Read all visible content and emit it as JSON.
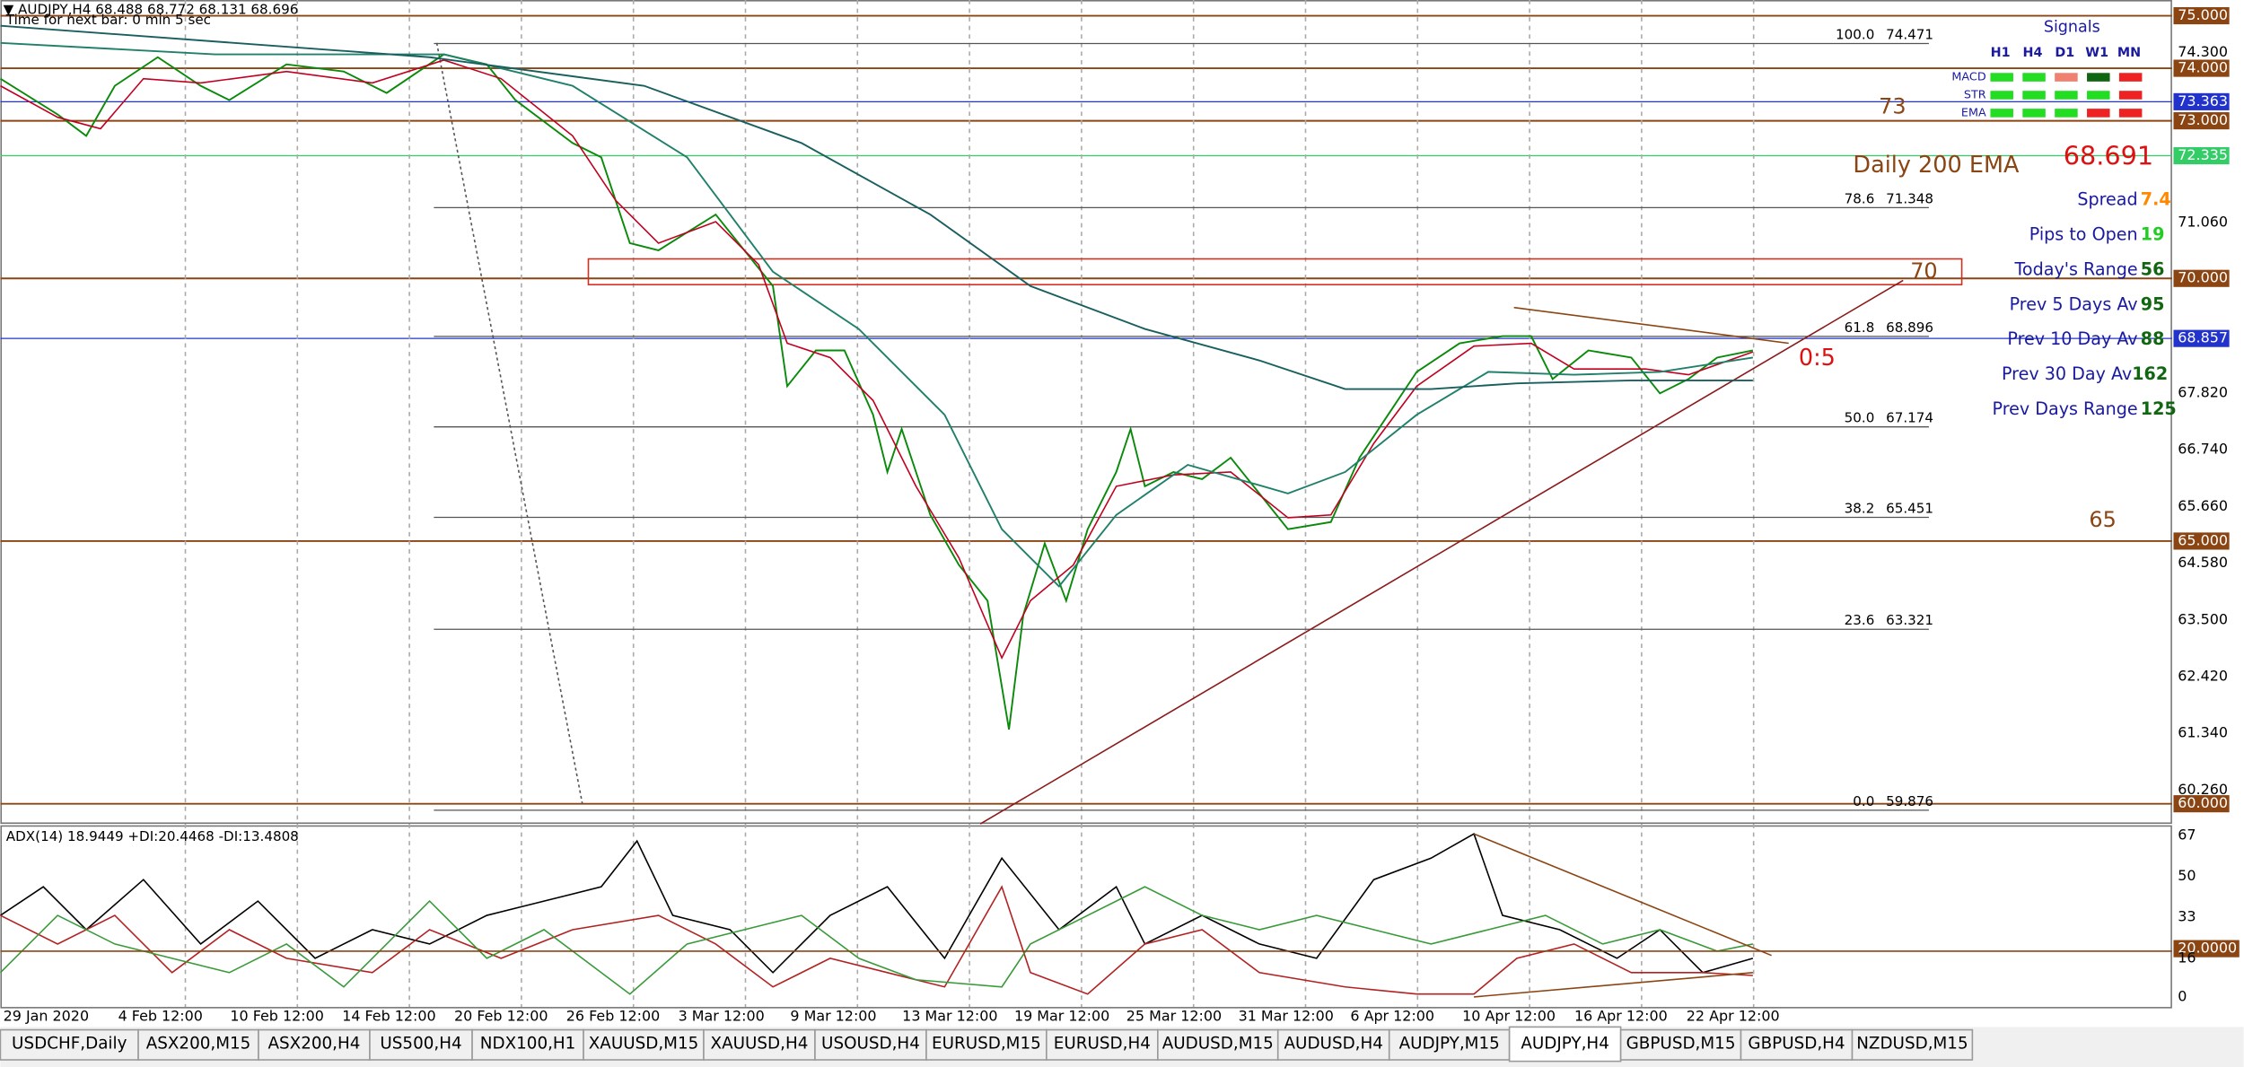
{
  "header": {
    "symbol_line": "▼ AUDJPY,H4 68.488 68.772 68.131 68.696",
    "timer": "Time for next bar: 0 min 5 sec"
  },
  "price_axis": [
    "75.000",
    "74.300",
    "74.000",
    "73.363",
    "73.000",
    "72.335",
    "71.060",
    "70.000",
    "68.857",
    "67.820",
    "66.740",
    "65.660",
    "65.000",
    "64.580",
    "63.500",
    "62.420",
    "61.340",
    "60.260",
    "60.000"
  ],
  "indicator": {
    "label": "ADX(14) 18.9449 +DI:20.4468 -DI:13.4808",
    "axis": [
      "67",
      "50",
      "33",
      "20.0000",
      "16",
      "0"
    ]
  },
  "time_axis": [
    "29 Jan 2020",
    "4 Feb 12:00",
    "10 Feb 12:00",
    "14 Feb 12:00",
    "20 Feb 12:00",
    "26 Feb 12:00",
    "3 Mar 12:00",
    "9 Mar 12:00",
    "13 Mar 12:00",
    "19 Mar 12:00",
    "25 Mar 12:00",
    "31 Mar 12:00",
    "6 Apr 12:00",
    "10 Apr 12:00",
    "16 Apr 12:00",
    "22 Apr 12:00"
  ],
  "fibonacci": [
    {
      "level": "100.0",
      "price": "74.471"
    },
    {
      "level": "78.6",
      "price": "71.348"
    },
    {
      "level": "61.8",
      "price": "68.896"
    },
    {
      "level": "50.0",
      "price": "67.174"
    },
    {
      "level": "38.2",
      "price": "65.451"
    },
    {
      "level": "23.6",
      "price": "63.321"
    },
    {
      "level": "0.0",
      "price": "59.876"
    }
  ],
  "annotations": {
    "level_73": "73",
    "daily_ema": "Daily 200 EMA",
    "level_70": "70",
    "level_65": "65",
    "ratio": "0:5",
    "price": "68.691"
  },
  "signals": {
    "title": "Signals",
    "columns": [
      "H1",
      "H4",
      "D1",
      "W1",
      "MN"
    ],
    "rows": [
      "MACD",
      "STR",
      "EMA"
    ]
  },
  "stats": [
    {
      "label": "Spread",
      "value": "7.4"
    },
    {
      "label": "Pips to Open",
      "value": "19"
    },
    {
      "label": "Today's Range",
      "value": "56"
    },
    {
      "label": "Prev 5 Days Av",
      "value": "95"
    },
    {
      "label": "Prev 10 Day Av",
      "value": "88"
    },
    {
      "label": "Prev 30 Day Av",
      "value": "162"
    },
    {
      "label": "Prev Days Range",
      "value": "125"
    }
  ],
  "tabs": [
    "USDCHF,Daily",
    "ASX200,M15",
    "ASX200,H4",
    "US500,H4",
    "NDX100,H1",
    "XAUUSD,M15",
    "XAUUSD,H4",
    "USOUSD,H4",
    "EURUSD,M15",
    "EURUSD,H4",
    "AUDUSD,M15",
    "AUDUSD,H4",
    "AUDJPY,M15",
    "AUDJPY,H4",
    "GBPUSD,M15",
    "GBPUSD,H4",
    "NZDUSD,M15"
  ]
}
